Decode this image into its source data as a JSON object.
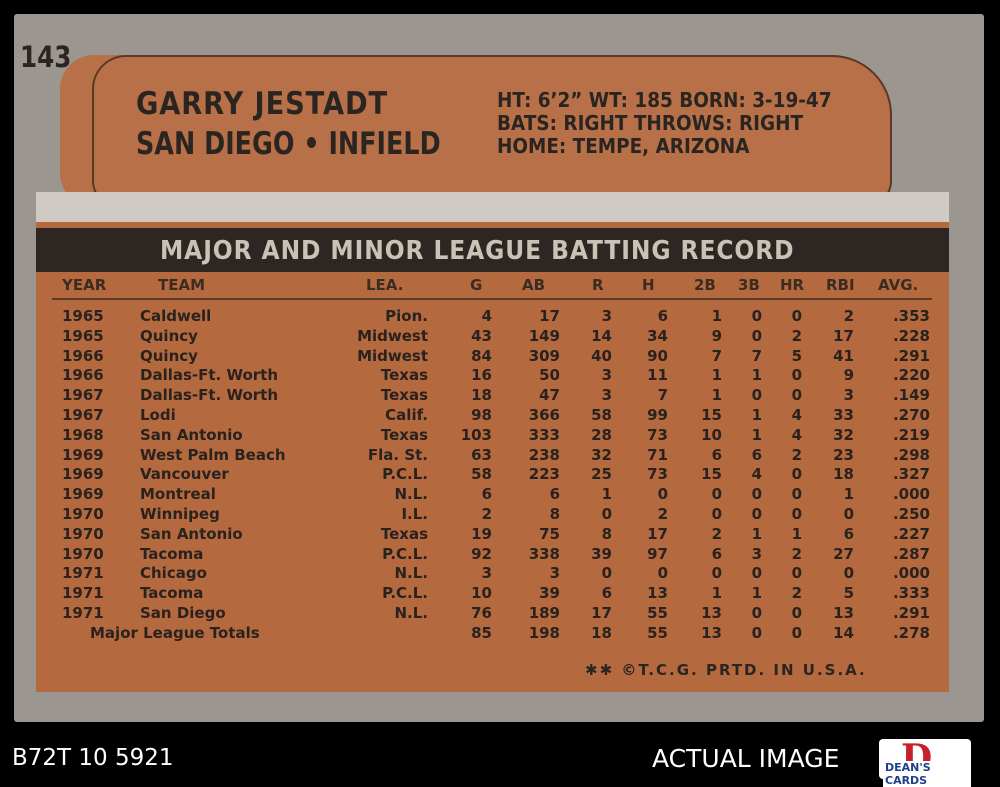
{
  "card": {
    "number": "143",
    "player_name": "GARRY JESTADT",
    "team_position": "SAN DIEGO • INFIELD",
    "bio": {
      "line1": "HT: 6’2”   WT: 185  BORN: 3-19-47",
      "line2": "BATS: RIGHT        THROWS: RIGHT",
      "line3": "HOME: TEMPE, ARIZONA"
    },
    "table_title": "MAJOR AND MINOR LEAGUE BATTING RECORD",
    "columns": [
      "YEAR",
      "TEAM",
      "LEA.",
      "G",
      "AB",
      "R",
      "H",
      "2B",
      "3B",
      "HR",
      "RBI",
      "AVG."
    ],
    "rows": [
      [
        "1965",
        "Caldwell",
        "Pion.",
        "4",
        "17",
        "3",
        "6",
        "1",
        "0",
        "0",
        "2",
        ".353"
      ],
      [
        "1965",
        "Quincy",
        "Midwest",
        "43",
        "149",
        "14",
        "34",
        "9",
        "0",
        "2",
        "17",
        ".228"
      ],
      [
        "1966",
        "Quincy",
        "Midwest",
        "84",
        "309",
        "40",
        "90",
        "7",
        "7",
        "5",
        "41",
        ".291"
      ],
      [
        "1966",
        "Dallas-Ft. Worth",
        "Texas",
        "16",
        "50",
        "3",
        "11",
        "1",
        "1",
        "0",
        "9",
        ".220"
      ],
      [
        "1967",
        "Dallas-Ft. Worth",
        "Texas",
        "18",
        "47",
        "3",
        "7",
        "1",
        "0",
        "0",
        "3",
        ".149"
      ],
      [
        "1967",
        "Lodi",
        "Calif.",
        "98",
        "366",
        "58",
        "99",
        "15",
        "1",
        "4",
        "33",
        ".270"
      ],
      [
        "1968",
        "San Antonio",
        "Texas",
        "103",
        "333",
        "28",
        "73",
        "10",
        "1",
        "4",
        "32",
        ".219"
      ],
      [
        "1969",
        "West Palm Beach",
        "Fla. St.",
        "63",
        "238",
        "32",
        "71",
        "6",
        "6",
        "2",
        "23",
        ".298"
      ],
      [
        "1969",
        "Vancouver",
        "P.C.L.",
        "58",
        "223",
        "25",
        "73",
        "15",
        "4",
        "0",
        "18",
        ".327"
      ],
      [
        "1969",
        "Montreal",
        "N.L.",
        "6",
        "6",
        "1",
        "0",
        "0",
        "0",
        "0",
        "1",
        ".000"
      ],
      [
        "1970",
        "Winnipeg",
        "I.L.",
        "2",
        "8",
        "0",
        "2",
        "0",
        "0",
        "0",
        "0",
        ".250"
      ],
      [
        "1970",
        "San Antonio",
        "Texas",
        "19",
        "75",
        "8",
        "17",
        "2",
        "1",
        "1",
        "6",
        ".227"
      ],
      [
        "1970",
        "Tacoma",
        "P.C.L.",
        "92",
        "338",
        "39",
        "97",
        "6",
        "3",
        "2",
        "27",
        ".287"
      ],
      [
        "1971",
        "Chicago",
        "N.L.",
        "3",
        "3",
        "0",
        "0",
        "0",
        "0",
        "0",
        "0",
        ".000"
      ],
      [
        "1971",
        "Tacoma",
        "P.C.L.",
        "10",
        "39",
        "6",
        "13",
        "1",
        "1",
        "2",
        "5",
        ".333"
      ],
      [
        "1971",
        "San Diego",
        "N.L.",
        "76",
        "189",
        "17",
        "55",
        "13",
        "0",
        "0",
        "13",
        ".291"
      ]
    ],
    "totals": {
      "label": "Major League Totals",
      "values": [
        "85",
        "198",
        "18",
        "55",
        "13",
        "0",
        "0",
        "14",
        ".278"
      ]
    },
    "copyright": "✱✱ ©T.C.G. PRTD. IN U.S.A."
  },
  "footer": {
    "cert_id": "B72T 10 5921",
    "actual_image": "ACTUAL IMAGE",
    "logo_letter": "D",
    "logo_text": "DEAN'S CARDS"
  }
}
